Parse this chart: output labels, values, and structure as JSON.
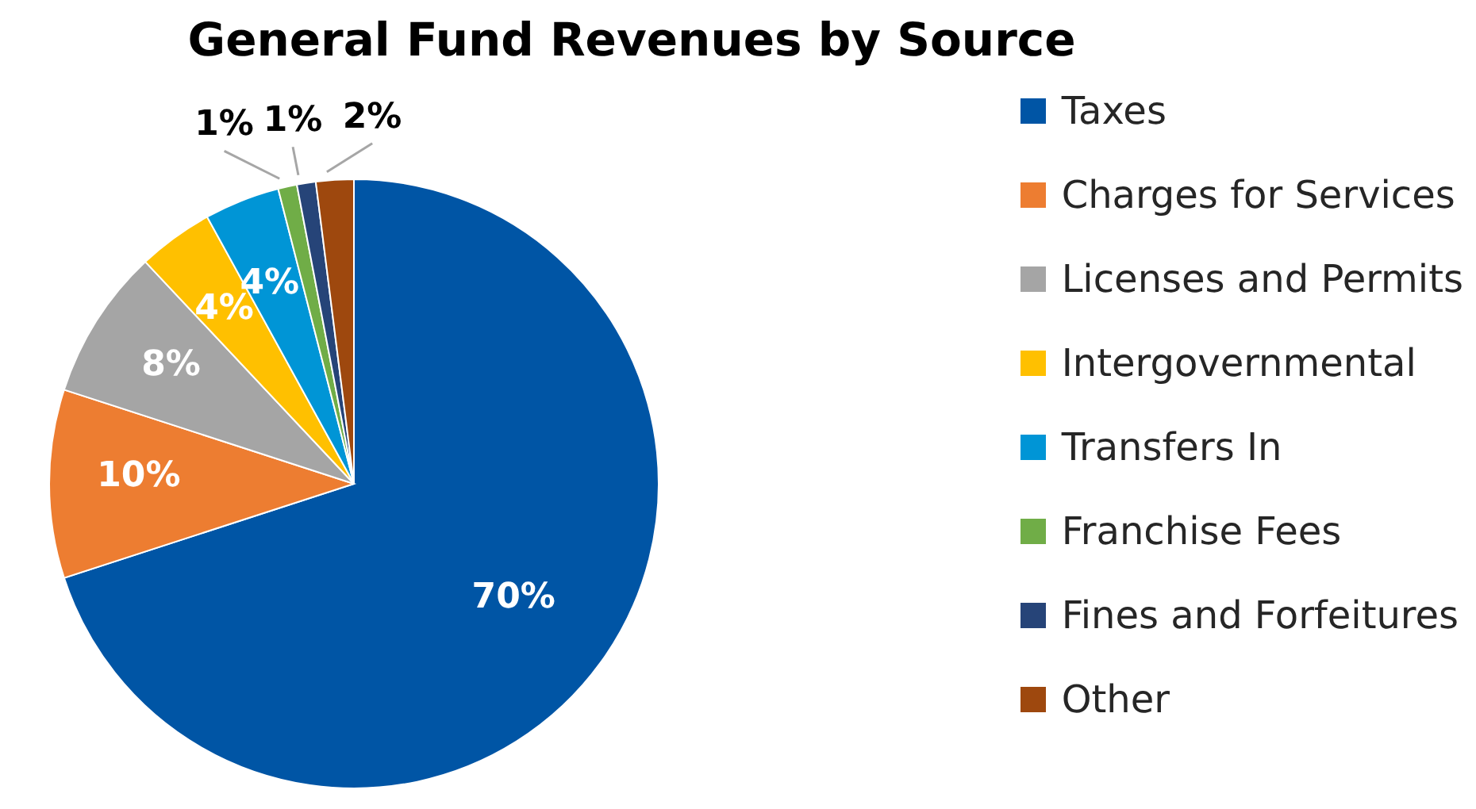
{
  "chart_data": {
    "type": "pie",
    "title": "General Fund Revenues by Source",
    "categories": [
      "Taxes",
      "Charges for Services",
      "Licenses and Permits",
      "Intergovernmental",
      "Transfers In",
      "Franchise Fees",
      "Fines and Forfeitures",
      "Other"
    ],
    "values": [
      70,
      10,
      8,
      4,
      4,
      1,
      1,
      2
    ],
    "colors": [
      "#0055a5",
      "#ed7d31",
      "#a5a5a5",
      "#ffc000",
      "#0095d6",
      "#70ad47",
      "#264478",
      "#9e480e"
    ],
    "value_labels": [
      "70%",
      "10%",
      "8%",
      "4%",
      "4%",
      "1%",
      "1%",
      "2%"
    ],
    "legend": "right"
  }
}
